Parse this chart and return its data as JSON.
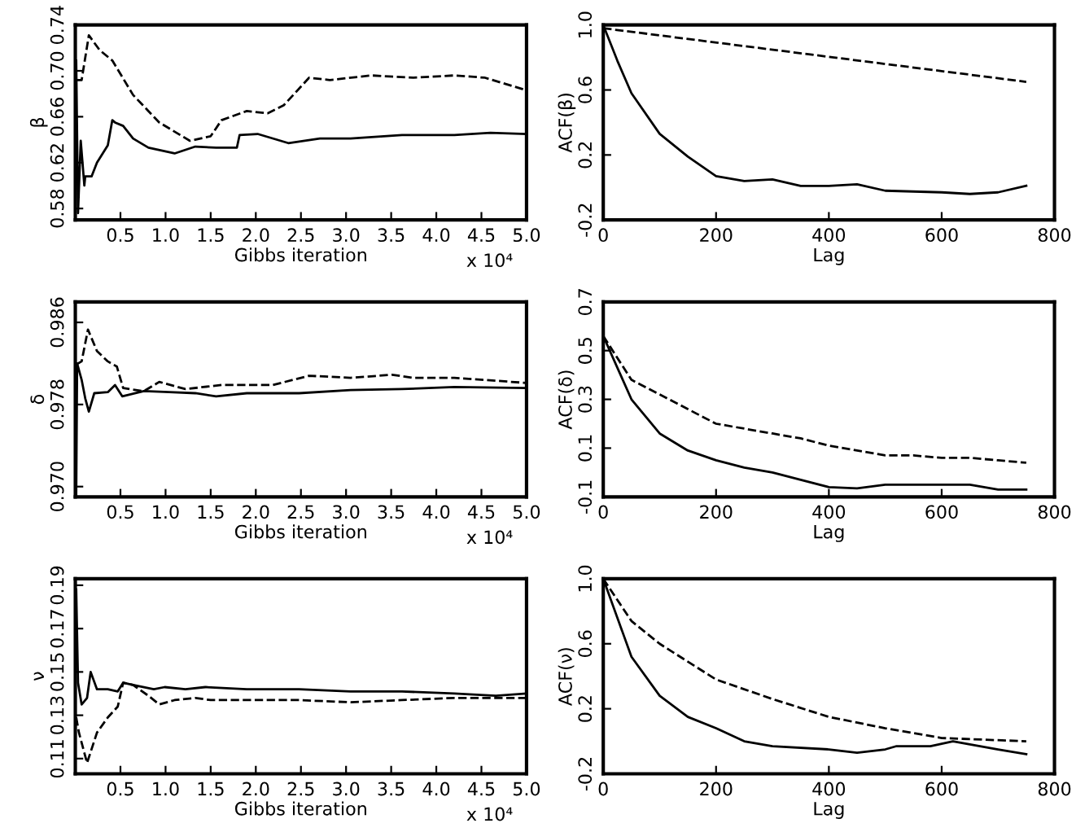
{
  "chart_data": [
    {
      "type": "line",
      "ylabel": "β",
      "xlabel": "Gibbs iteration",
      "annotations": [
        "x 10⁴"
      ],
      "xlim": [
        0,
        5.0
      ],
      "xticks": [
        0.5,
        {
          "value": 1,
          "label": "1.0"
        },
        1.5,
        {
          "value": 2,
          "label": "2.0"
        },
        2.5,
        {
          "value": 3,
          "label": "3.0"
        },
        3.5,
        {
          "value": 4,
          "label": "4.0"
        },
        4.5,
        {
          "value": 5,
          "label": "5.0"
        }
      ],
      "ylim": [
        0.57,
        0.74
      ],
      "yticks": [
        0.58,
        0.62,
        0.66,
        {
          "value": 0.7,
          "label": "0.70"
        },
        0.74
      ],
      "grid": false,
      "series": [
        {
          "color": "#000000",
          "line_style": "solid",
          "x": [
            0.01,
            0.03,
            0.06,
            0.1,
            0.11,
            0.18,
            0.24,
            0.36,
            0.41,
            0.44,
            0.53,
            0.64,
            0.81,
            1.1,
            1.33,
            1.56,
            1.79,
            1.82,
            2.02,
            2.36,
            2.71,
            3.05,
            3.62,
            4.2,
            4.6,
            5.0
          ],
          "values": [
            0.709,
            0.576,
            0.639,
            0.6,
            0.608,
            0.608,
            0.62,
            0.635,
            0.657,
            0.655,
            0.652,
            0.641,
            0.633,
            0.628,
            0.634,
            0.633,
            0.633,
            0.644,
            0.645,
            0.637,
            0.641,
            0.641,
            0.644,
            0.644,
            0.646,
            0.645
          ]
        },
        {
          "color": "#000000",
          "line_style": "dashed",
          "x": [
            0.01,
            0.07,
            0.15,
            0.27,
            0.41,
            0.64,
            0.93,
            1.27,
            1.5,
            1.62,
            1.9,
            2.13,
            2.31,
            2.59,
            2.82,
            3.28,
            3.74,
            4.2,
            4.54,
            5.0
          ],
          "values": [
            0.692,
            0.692,
            0.731,
            0.718,
            0.709,
            0.679,
            0.655,
            0.639,
            0.643,
            0.657,
            0.665,
            0.663,
            0.67,
            0.694,
            0.692,
            0.696,
            0.694,
            0.696,
            0.694,
            0.683
          ]
        }
      ]
    },
    {
      "type": "line",
      "ylabel": "ACF(β)",
      "xlabel": "Lag",
      "xlim": [
        0,
        800
      ],
      "xticks": [
        0,
        200,
        400,
        600,
        800
      ],
      "ylim": [
        -0.2,
        1.0
      ],
      "yticks": [
        -0.2,
        0.2,
        0.6,
        {
          "value": 1,
          "label": "1.0"
        }
      ],
      "grid": false,
      "series": [
        {
          "color": "#000000",
          "line_style": "solid",
          "x": [
            0,
            25,
            50,
            100,
            150,
            200,
            250,
            300,
            350,
            400,
            450,
            500,
            600,
            650,
            700,
            750
          ],
          "values": [
            1.0,
            0.78,
            0.58,
            0.33,
            0.19,
            0.07,
            0.04,
            0.05,
            0.01,
            0.01,
            0.02,
            -0.02,
            -0.03,
            -0.04,
            -0.03,
            0.01
          ]
        },
        {
          "color": "#000000",
          "line_style": "dashed",
          "x": [
            0,
            750
          ],
          "values": [
            0.98,
            0.65
          ]
        }
      ]
    },
    {
      "type": "line",
      "ylabel": "δ",
      "xlabel": "Gibbs iteration",
      "annotations": [
        "x 10⁴"
      ],
      "xlim": [
        0,
        5.0
      ],
      "xticks": [
        0.5,
        {
          "value": 1,
          "label": "1.0"
        },
        1.5,
        {
          "value": 2,
          "label": "2.0"
        },
        2.5,
        {
          "value": 3,
          "label": "3.0"
        },
        3.5,
        {
          "value": 4,
          "label": "4.0"
        },
        4.5,
        {
          "value": 5,
          "label": "5.0"
        }
      ],
      "ylim": [
        0.969,
        0.988
      ],
      "yticks": [
        {
          "value": 0.97,
          "label": "0.970"
        },
        0.978,
        0.986
      ],
      "grid": false,
      "series": [
        {
          "color": "#000000",
          "line_style": "solid",
          "x": [
            0.01,
            0.02,
            0.07,
            0.11,
            0.15,
            0.21,
            0.36,
            0.44,
            0.52,
            0.76,
            1.04,
            1.33,
            1.56,
            1.9,
            2.48,
            3.05,
            3.62,
            4.2,
            5.0
          ],
          "values": [
            0.969,
            0.982,
            0.9804,
            0.9786,
            0.9773,
            0.9791,
            0.9792,
            0.9799,
            0.9788,
            0.9793,
            0.9792,
            0.9791,
            0.9788,
            0.9791,
            0.9791,
            0.9794,
            0.9795,
            0.9797,
            0.9796
          ]
        },
        {
          "color": "#000000",
          "line_style": "dashed",
          "x": [
            0.01,
            0.07,
            0.14,
            0.24,
            0.36,
            0.46,
            0.53,
            0.76,
            0.93,
            1.22,
            1.62,
            2.19,
            2.59,
            3.05,
            3.51,
            3.74,
            4.2,
            5.0
          ],
          "values": [
            0.9819,
            0.9822,
            0.9853,
            0.9832,
            0.9822,
            0.9817,
            0.9796,
            0.9793,
            0.9802,
            0.9795,
            0.9799,
            0.9799,
            0.9808,
            0.9806,
            0.9809,
            0.9806,
            0.9806,
            0.9801
          ]
        }
      ]
    },
    {
      "type": "line",
      "ylabel": "ACF(δ)",
      "xlabel": "Lag",
      "xlim": [
        0,
        800
      ],
      "xticks": [
        0,
        200,
        400,
        600,
        800
      ],
      "ylim": [
        -0.1,
        0.7
      ],
      "yticks": [
        -0.1,
        0.1,
        0.3,
        0.5,
        0.7
      ],
      "grid": false,
      "series": [
        {
          "color": "#000000",
          "line_style": "solid",
          "x": [
            0,
            50,
            100,
            150,
            200,
            250,
            300,
            350,
            400,
            450,
            500,
            550,
            600,
            650,
            700,
            750
          ],
          "values": [
            0.56,
            0.3,
            0.16,
            0.09,
            0.05,
            0.02,
            0.0,
            -0.03,
            -0.06,
            -0.065,
            -0.05,
            -0.05,
            -0.05,
            -0.05,
            -0.07,
            -0.07
          ]
        },
        {
          "color": "#000000",
          "line_style": "dashed",
          "x": [
            0,
            50,
            100,
            150,
            200,
            250,
            300,
            350,
            400,
            450,
            500,
            550,
            600,
            650,
            700,
            750
          ],
          "values": [
            0.56,
            0.38,
            0.32,
            0.26,
            0.2,
            0.18,
            0.16,
            0.14,
            0.11,
            0.09,
            0.07,
            0.07,
            0.06,
            0.06,
            0.05,
            0.04
          ]
        }
      ]
    },
    {
      "type": "line",
      "ylabel": "ν",
      "xlabel": "Gibbs iteration",
      "annotations": [
        "x 10⁴"
      ],
      "xlim": [
        0,
        5.0
      ],
      "xticks": [
        0.5,
        {
          "value": 1,
          "label": "1.0"
        },
        1.5,
        {
          "value": 2,
          "label": "2.0"
        },
        2.5,
        {
          "value": 3,
          "label": "3.0"
        },
        3.5,
        {
          "value": 4,
          "label": "4.0"
        },
        4.5,
        {
          "value": 5,
          "label": "5.0"
        }
      ],
      "ylim": [
        0.103,
        0.193
      ],
      "yticks": [
        0.11,
        0.13,
        0.15,
        0.17,
        0.19
      ],
      "grid": false,
      "series": [
        {
          "color": "#000000",
          "line_style": "solid",
          "x": [
            0.01,
            0.03,
            0.07,
            0.13,
            0.17,
            0.24,
            0.36,
            0.47,
            0.53,
            0.64,
            0.87,
            0.99,
            1.22,
            1.44,
            1.9,
            2.48,
            3.05,
            3.62,
            4.2,
            4.66,
            5.0
          ],
          "values": [
            0.188,
            0.145,
            0.135,
            0.138,
            0.15,
            0.142,
            0.142,
            0.141,
            0.145,
            0.144,
            0.142,
            0.143,
            0.142,
            0.143,
            0.142,
            0.142,
            0.141,
            0.141,
            0.14,
            0.139,
            0.14
          ]
        },
        {
          "color": "#000000",
          "line_style": "dashed",
          "x": [
            0.01,
            0.04,
            0.13,
            0.24,
            0.36,
            0.47,
            0.53,
            0.64,
            0.81,
            0.93,
            1.1,
            1.33,
            1.5,
            1.9,
            2.48,
            3.05,
            3.62,
            4.2,
            5.0
          ],
          "values": [
            0.129,
            0.122,
            0.108,
            0.122,
            0.129,
            0.134,
            0.145,
            0.144,
            0.139,
            0.135,
            0.137,
            0.138,
            0.137,
            0.137,
            0.137,
            0.136,
            0.137,
            0.138,
            0.138
          ]
        }
      ]
    },
    {
      "type": "line",
      "ylabel": "ACF(ν)",
      "xlabel": "Lag",
      "xlim": [
        0,
        800
      ],
      "xticks": [
        0,
        200,
        400,
        600,
        800
      ],
      "ylim": [
        -0.2,
        1.0
      ],
      "yticks": [
        -0.2,
        0.2,
        0.6,
        {
          "value": 1,
          "label": "1.0"
        }
      ],
      "grid": false,
      "series": [
        {
          "color": "#000000",
          "line_style": "solid",
          "x": [
            0,
            50,
            100,
            150,
            200,
            250,
            300,
            400,
            450,
            500,
            520,
            580,
            620,
            700,
            750
          ],
          "values": [
            1.0,
            0.52,
            0.28,
            0.15,
            0.08,
            0.0,
            -0.03,
            -0.05,
            -0.07,
            -0.05,
            -0.03,
            -0.03,
            0.0,
            -0.05,
            -0.08
          ]
        },
        {
          "color": "#000000",
          "line_style": "dashed",
          "x": [
            0,
            50,
            100,
            200,
            300,
            400,
            500,
            600,
            750
          ],
          "values": [
            1.0,
            0.74,
            0.6,
            0.38,
            0.26,
            0.15,
            0.08,
            0.02,
            0.0
          ]
        }
      ]
    }
  ]
}
